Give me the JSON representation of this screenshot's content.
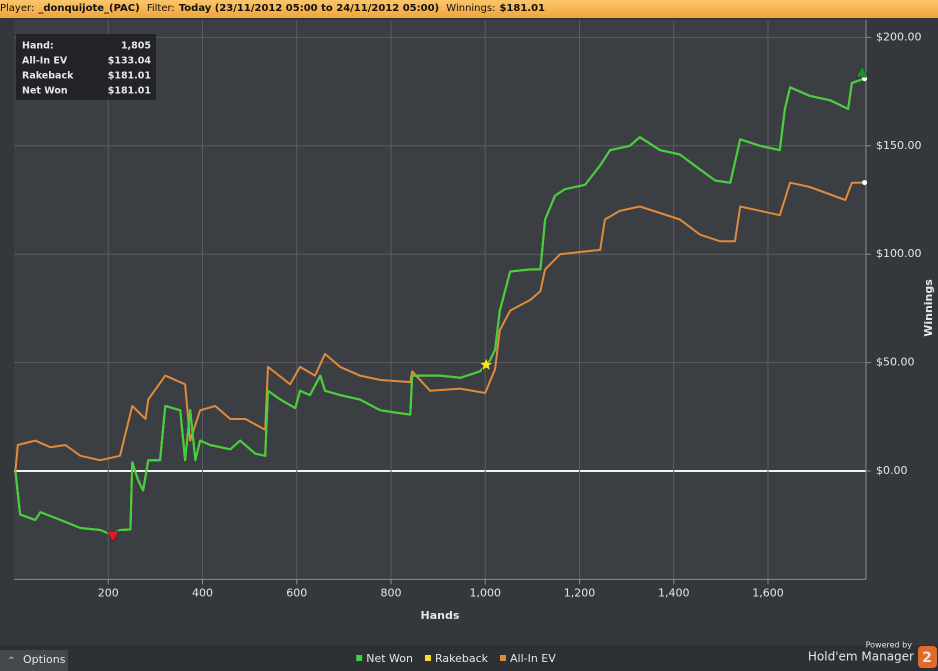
{
  "header": {
    "player_label": "Player:",
    "player": "_donquijote_(PAC)",
    "filter_label": "Filter:",
    "filter": "Today (23/11/2012 05:00 to 24/11/2012 05:00)",
    "winnings_label": "Winnings:",
    "winnings": "$181.01"
  },
  "summary": [
    {
      "label": "Hand:",
      "value": "1,805"
    },
    {
      "label": "All-In EV",
      "value": "$133.04"
    },
    {
      "label": "Rakeback",
      "value": "$181.01"
    },
    {
      "label": "Net Won",
      "value": "$181.01"
    }
  ],
  "chart_data": {
    "type": "line",
    "x_label": "Hands",
    "y_label": "Winnings",
    "xlim": [
      0,
      1808
    ],
    "xticks": [
      200,
      400,
      600,
      800,
      {
        "value": 1000,
        "label": "1,000"
      },
      {
        "value": 1200,
        "label": "1,200"
      },
      {
        "value": 1400,
        "label": "1,400"
      },
      {
        "value": 1600,
        "label": "1,600"
      }
    ],
    "ylim": [
      -50,
      200
    ],
    "yticks": [
      {
        "value": 0,
        "label": "$0.00"
      },
      {
        "value": 50,
        "label": "$50.00"
      },
      {
        "value": 100,
        "label": "$100.00"
      },
      {
        "value": 150,
        "label": "$150.00"
      },
      {
        "value": 200,
        "label": "$200.00"
      }
    ],
    "grid": true,
    "zero_line": true,
    "series": [
      {
        "name": "Net Won",
        "color": "#3fd13f",
        "x": [
          3,
          13,
          45,
          56,
          88,
          109,
          141,
          183,
          204,
          225,
          247,
          251,
          263,
          274,
          285,
          310,
          321,
          353,
          363,
          374,
          385,
          395,
          416,
          459,
          480,
          512,
          533,
          539,
          565,
          597,
          607,
          628,
          650,
          660,
          692,
          734,
          777,
          809,
          841,
          845,
          904,
          947,
          989,
          1010,
          1021,
          1031,
          1042,
          1053,
          1096,
          1117,
          1127,
          1148,
          1169,
          1212,
          1244,
          1265,
          1307,
          1328,
          1371,
          1413,
          1456,
          1488,
          1520,
          1541,
          1583,
          1625,
          1636,
          1647,
          1689,
          1732,
          1770,
          1778,
          1805
        ],
        "values": [
          0,
          -20,
          -22.6,
          -19,
          -21.7,
          -23.5,
          -26.3,
          -27.2,
          -29,
          -27.2,
          -27,
          4,
          -4,
          -9,
          5,
          5,
          30,
          28,
          5,
          28,
          5,
          14,
          12,
          10,
          14,
          8,
          7,
          37,
          33,
          29,
          37,
          35,
          44,
          37,
          35,
          33,
          28,
          27,
          26,
          44,
          44,
          43,
          46,
          51,
          56,
          74,
          83,
          92,
          93,
          93,
          116,
          127,
          130,
          132,
          141,
          148,
          150,
          154,
          148,
          146,
          139,
          134,
          133,
          153,
          150,
          148,
          167,
          177,
          173,
          171,
          167,
          179,
          181.01
        ]
      },
      {
        "name": "Rakeback",
        "color": "#f2e12a",
        "x": [
          3,
          13,
          45,
          56,
          88,
          109,
          141,
          183,
          204,
          225,
          247,
          251,
          263,
          274,
          285,
          310,
          321,
          353,
          363,
          374,
          385,
          395,
          416,
          459,
          480,
          512,
          533,
          539,
          565,
          597,
          607,
          628,
          650,
          660,
          692,
          734,
          777,
          809,
          841,
          845,
          904,
          947,
          989,
          1010,
          1021,
          1031,
          1042,
          1053,
          1096,
          1117,
          1127,
          1148,
          1169,
          1212,
          1244,
          1265,
          1307,
          1328,
          1371,
          1413,
          1456,
          1488,
          1520,
          1541,
          1583,
          1625,
          1636,
          1647,
          1689,
          1732,
          1770,
          1778,
          1805
        ],
        "values": [
          0,
          -20,
          -22.6,
          -19,
          -21.7,
          -23.5,
          -26.3,
          -27.2,
          -29,
          -27.2,
          -27,
          4,
          -4,
          -9,
          5,
          5,
          30,
          28,
          5,
          28,
          5,
          14,
          12,
          10,
          14,
          8,
          7,
          37,
          33,
          29,
          37,
          35,
          44,
          37,
          35,
          33,
          28,
          27,
          26,
          44,
          44,
          43,
          46,
          51,
          56,
          74,
          83,
          92,
          93,
          93,
          116,
          127,
          130,
          132,
          141,
          148,
          150,
          154,
          148,
          146,
          139,
          134,
          133,
          153,
          150,
          148,
          167,
          177,
          173,
          171,
          167,
          179,
          181.01
        ]
      },
      {
        "name": "All-In EV",
        "color": "#e08a3c",
        "x": [
          3,
          8,
          45,
          77,
          109,
          141,
          183,
          225,
          251,
          279,
          285,
          321,
          363,
          374,
          395,
          427,
          459,
          491,
          533,
          539,
          586,
          607,
          639,
          660,
          692,
          734,
          777,
          841,
          845,
          883,
          947,
          1000,
          1021,
          1031,
          1053,
          1096,
          1117,
          1127,
          1159,
          1201,
          1244,
          1254,
          1286,
          1328,
          1371,
          1413,
          1456,
          1498,
          1530,
          1541,
          1583,
          1625,
          1647,
          1689,
          1764,
          1778,
          1805
        ],
        "values": [
          0,
          12,
          14,
          11,
          12,
          7,
          5,
          7,
          30,
          24,
          33,
          44,
          40,
          14,
          28,
          30,
          24,
          24,
          19,
          48,
          40,
          48,
          44,
          54,
          48,
          44,
          42,
          41,
          46,
          37,
          38,
          36,
          47,
          65,
          74,
          79,
          83,
          93,
          100,
          101,
          102,
          116,
          120,
          122,
          119,
          116,
          109,
          106,
          106,
          122,
          120,
          118,
          133,
          131,
          125,
          133,
          133.04
        ]
      }
    ],
    "markers": [
      {
        "x": 210,
        "y": -30,
        "shape": "down-triangle",
        "color": "#e01a1a"
      },
      {
        "x": 1002,
        "y": 49,
        "shape": "star",
        "color": "#f5e81e"
      },
      {
        "x": 1800,
        "y": 184,
        "shape": "up-triangle",
        "color": "#1f8f2a"
      }
    ]
  },
  "footer": {
    "options": "Options",
    "powered_by": "Powered by",
    "brand": "Hold'em Manager",
    "badge": "2"
  }
}
